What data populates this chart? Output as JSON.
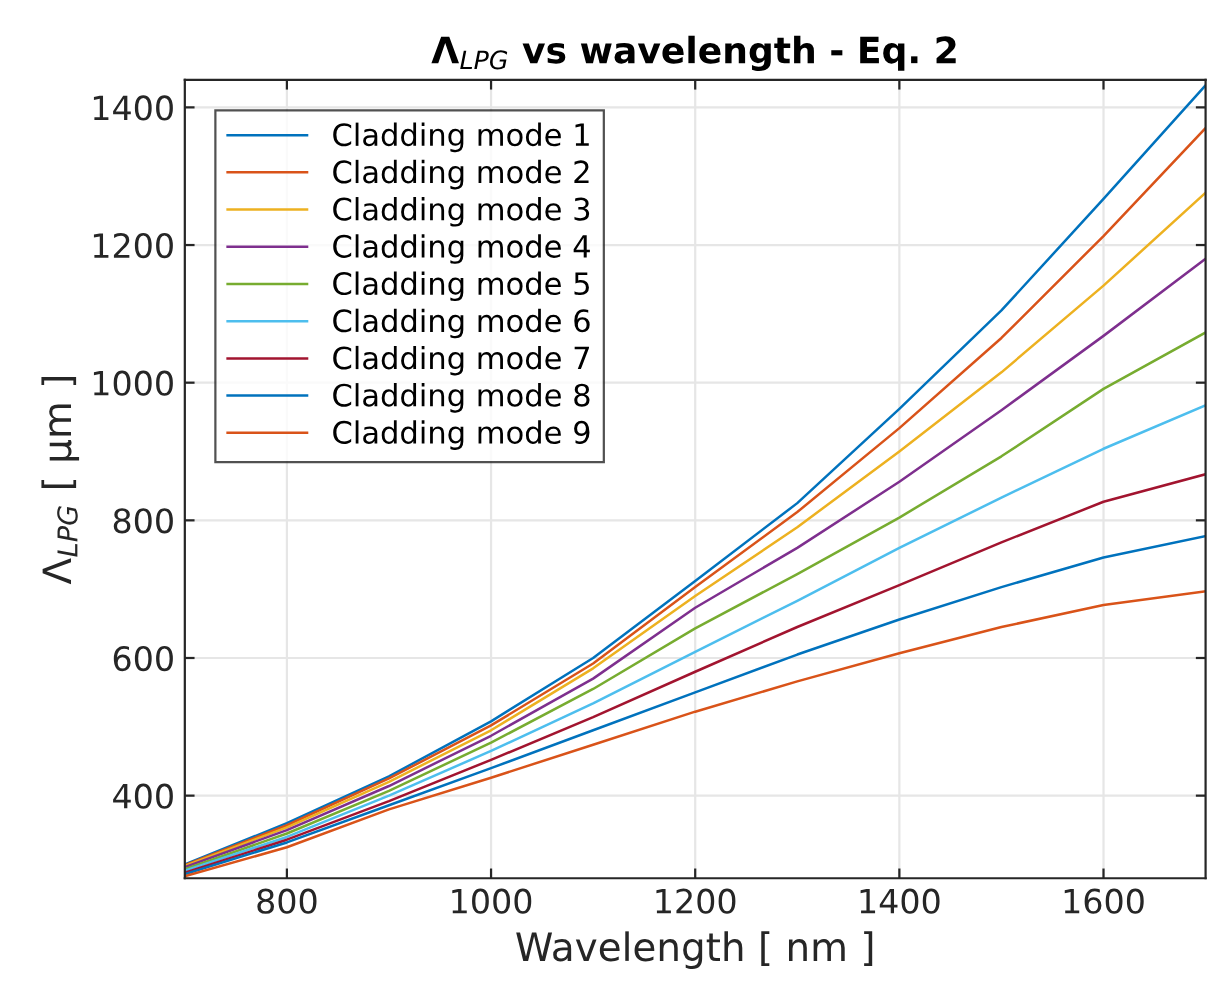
{
  "chart_data": {
    "type": "line",
    "title": "Λ$_{LPG}$ vs wavelength - Eq. 2",
    "xlabel": "Wavelength [ nm ]",
    "ylabel": "Λ$_{LPG}$ [ μm ]",
    "x": [
      700,
      800,
      900,
      1000,
      1100,
      1200,
      1300,
      1400,
      1500,
      1600,
      1700
    ],
    "series": [
      {
        "name": "Cladding mode 1",
        "color": "#0072bd",
        "values": [
          300,
          360,
          428,
          508,
          600,
          712,
          825,
          962,
          1105,
          1267,
          1432
        ]
      },
      {
        "name": "Cladding mode 2",
        "color": "#d95319",
        "values": [
          299,
          357,
          425,
          502,
          592,
          703,
          812,
          934,
          1065,
          1213,
          1370
        ]
      },
      {
        "name": "Cladding mode 3",
        "color": "#edb120",
        "values": [
          298,
          354,
          420,
          495,
          585,
          690,
          790,
          900,
          1015,
          1141,
          1276
        ]
      },
      {
        "name": "Cladding mode 4",
        "color": "#7e2f8e",
        "values": [
          296,
          350,
          414,
          487,
          570,
          673,
          760,
          856,
          960,
          1068,
          1180
        ]
      },
      {
        "name": "Cladding mode 5",
        "color": "#77ac30",
        "values": [
          293,
          345,
          407,
          477,
          555,
          643,
          722,
          804,
          893,
          991,
          1073
        ]
      },
      {
        "name": "Cladding mode 6",
        "color": "#4dbeee",
        "values": [
          291,
          340,
          400,
          465,
          534,
          609,
          683,
          760,
          833,
          904,
          967
        ]
      },
      {
        "name": "Cladding mode 7",
        "color": "#a2142f",
        "values": [
          288,
          336,
          392,
          452,
          514,
          580,
          645,
          706,
          768,
          827,
          867
        ]
      },
      {
        "name": "Cladding mode 8",
        "color": "#0072bd",
        "values": [
          286,
          332,
          386,
          440,
          495,
          550,
          605,
          656,
          703,
          746,
          777
        ]
      },
      {
        "name": "Cladding mode 9",
        "color": "#d95319",
        "values": [
          283,
          325,
          380,
          426,
          474,
          522,
          566,
          607,
          645,
          677,
          697
        ]
      }
    ],
    "xlim": [
      700,
      1700
    ],
    "ylim": [
      280,
      1440
    ],
    "xticks": [
      800,
      1000,
      1200,
      1400,
      1600
    ],
    "yticks": [
      400,
      600,
      800,
      1000,
      1200,
      1400
    ],
    "grid": true,
    "legend": "top left",
    "marker": "none",
    "line_style": "solid"
  }
}
